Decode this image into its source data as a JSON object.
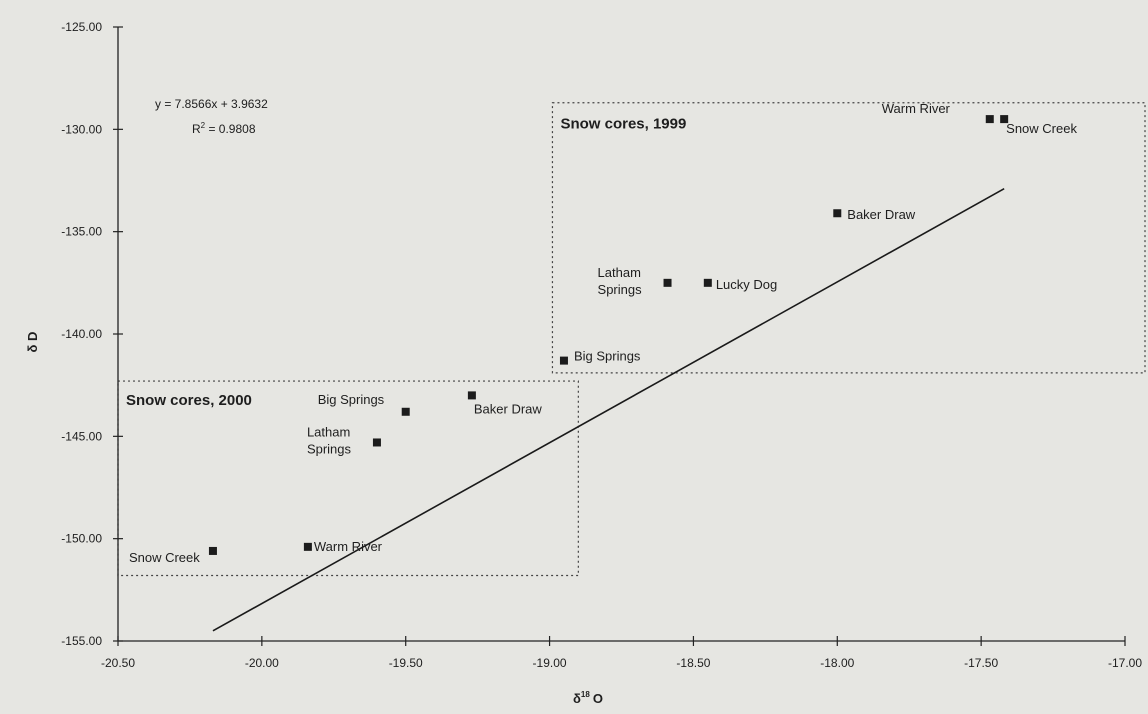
{
  "chart_data": {
    "type": "scatter",
    "title": "",
    "xlabel_main": "δ",
    "xlabel_super": "18",
    "xlabel_tail": "O",
    "ylabel": "δ D",
    "xlim": [
      -20.5,
      -17.0
    ],
    "ylim": [
      -155.0,
      -125.0
    ],
    "x_ticks": [
      -20.5,
      -20.0,
      -19.5,
      -19.0,
      -18.5,
      -18.0,
      -17.5,
      -17.0
    ],
    "x_tick_labels": [
      "-20.50",
      "-20.00",
      "-19.50",
      "-19.00",
      "-18.50",
      "-18.00",
      "-17.50",
      "-17.00"
    ],
    "y_ticks": [
      -125,
      -130,
      -135,
      -140,
      -145,
      -150,
      -155
    ],
    "y_tick_labels": [
      "-125.00",
      "-130.00",
      "-135.00",
      "-140.00",
      "-145.00",
      "-150.00",
      "-155.00"
    ],
    "grid": false,
    "trendline": {
      "slope": 7.8566,
      "intercept": 3.9632,
      "x_range": [
        -20.17,
        -17.42
      ]
    },
    "equation_line1": "y = 7.8566x + 3.9632",
    "r2_prefix": "R",
    "r2_super": "2",
    "r2_suffix": " = 0.9808",
    "groups": [
      {
        "title": "Snow cores, 1999",
        "box": {
          "x": [
            -18.99,
            -16.9
          ],
          "y": [
            -141.9,
            -128.7
          ]
        },
        "points": [
          {
            "label": "Warm River",
            "x": -17.47,
            "y": -129.5
          },
          {
            "label": "Snow Creek",
            "x": -17.42,
            "y": -129.5
          },
          {
            "label": "Baker Draw",
            "x": -18.0,
            "y": -134.1
          },
          {
            "label": "Latham Springs",
            "x": -18.59,
            "y": -137.5
          },
          {
            "label": "Lucky Dog",
            "x": -18.45,
            "y": -137.5
          },
          {
            "label": "Big Springs",
            "x": -18.95,
            "y": -141.3
          }
        ]
      },
      {
        "title": "Snow cores, 2000",
        "box": {
          "x": [
            -20.5,
            -18.9
          ],
          "y": [
            -151.8,
            -142.3
          ]
        },
        "points": [
          {
            "label": "Big Springs",
            "x": -19.5,
            "y": -143.8
          },
          {
            "label": "Baker Draw",
            "x": -19.27,
            "y": -143.0
          },
          {
            "label": "Latham Springs",
            "x": -19.6,
            "y": -145.3
          },
          {
            "label": "Snow Creek",
            "x": -20.17,
            "y": -150.6
          },
          {
            "label": "Warm River",
            "x": -19.84,
            "y": -150.4
          }
        ]
      }
    ]
  }
}
